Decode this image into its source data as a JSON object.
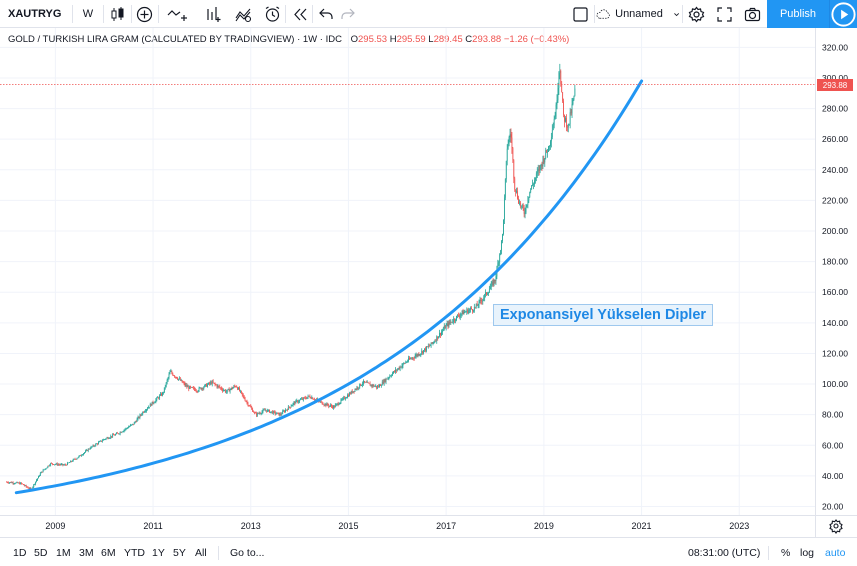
{
  "toolbar": {
    "symbol": "XAUTRYG",
    "interval": "W",
    "layout_name": "Unnamed",
    "publish_label": "Publish",
    "icons": [
      "candles-icon",
      "add-indicator-icon",
      "compare-icon",
      "indicators-icon",
      "templates-icon",
      "alert-icon",
      "replay-icon",
      "undo-icon",
      "redo-icon",
      "fullscreen-icon",
      "cloud-icon",
      "chevron-down-icon",
      "settings-icon",
      "expand-icon",
      "camera-icon",
      "play-icon"
    ]
  },
  "legend": {
    "title": "GOLD / TURKISH LIRA GRAM (CALCULATED BY TRADINGVIEW) · 1W · IDC",
    "open_label": "O",
    "open": "295.53",
    "high_label": "H",
    "high": "295.59",
    "low_label": "L",
    "low": "289.45",
    "close_label": "C",
    "close": "293.88",
    "change": "−1.26 (−0.43%)",
    "up_color": "#26a69a",
    "down_color": "#ef5350"
  },
  "price_axis": {
    "last_price": "293.88"
  },
  "annotation": {
    "text": "Exponansiyel Yükselen Dipler",
    "color": "#1e88e5"
  },
  "bottombar": {
    "ranges": [
      "1D",
      "5D",
      "1M",
      "3M",
      "6M",
      "YTD",
      "1Y",
      "5Y",
      "All"
    ],
    "goto_label": "Go to...",
    "time": "08:31:00 (UTC)",
    "percent_label": "%",
    "log_label": "log",
    "auto_label": "auto"
  },
  "chart_data": {
    "type": "line",
    "title": "",
    "xlabel": "",
    "ylabel": "",
    "x_ticks": [
      "2009",
      "2011",
      "2013",
      "2015",
      "2017",
      "2019",
      "2021",
      "2023"
    ],
    "y_ticks": [
      "20.00",
      "40.00",
      "60.00",
      "80.00",
      "100.00",
      "120.00",
      "140.00",
      "160.00",
      "180.00",
      "200.00",
      "220.00",
      "240.00",
      "260.00",
      "280.00",
      "300.00",
      "320.00"
    ],
    "ylim": [
      14,
      327
    ],
    "xlim": [
      2008.3,
      2024.7
    ],
    "grid": true,
    "series": [
      {
        "x": [
          2008.3,
          2008.6,
          2008.8,
          2009.0,
          2009.2,
          2009.5,
          2009.8,
          2010.0,
          2010.3,
          2010.6,
          2010.9,
          2011.1,
          2011.3,
          2011.5,
          2011.65,
          2011.8,
          2012.0,
          2012.2,
          2012.5,
          2012.8,
          2013.0,
          2013.2,
          2013.4,
          2013.6,
          2013.9,
          2014.2,
          2014.5,
          2014.8,
          2015.0,
          2015.3,
          2015.6,
          2015.9,
          2016.2,
          2016.5,
          2016.8,
          2017.0,
          2017.3,
          2017.6,
          2017.9,
          2018.1,
          2018.3,
          2018.45,
          2018.55,
          2018.62,
          2018.7,
          2018.8,
          2018.9,
          2019.0,
          2019.2,
          2019.4,
          2019.55,
          2019.62,
          2019.7,
          2019.8,
          2019.9,
          2019.95
        ],
        "values": [
          36,
          35,
          31,
          42,
          48,
          47,
          53,
          58,
          64,
          68,
          74,
          82,
          88,
          94,
          108,
          104,
          98,
          96,
          101,
          95,
          99,
          89,
          80,
          83,
          80,
          88,
          92,
          87,
          85,
          93,
          101,
          98,
          107,
          115,
          121,
          126,
          138,
          146,
          150,
          158,
          168,
          195,
          255,
          265,
          230,
          218,
          212,
          225,
          240,
          255,
          280,
          310,
          275,
          268,
          285,
          294
        ]
      },
      {
        "x": [
          2008.5,
          2009.5,
          2010.5,
          2011.5,
          2012.5,
          2013.5,
          2014.5,
          2015.5,
          2016.5,
          2017.5,
          2018.5,
          2019.5,
          2020.5,
          2021.3
        ],
        "values": [
          29,
          34,
          40,
          47,
          55,
          65,
          77,
          92,
          112,
          138,
          172,
          215,
          266,
          298
        ]
      }
    ]
  }
}
